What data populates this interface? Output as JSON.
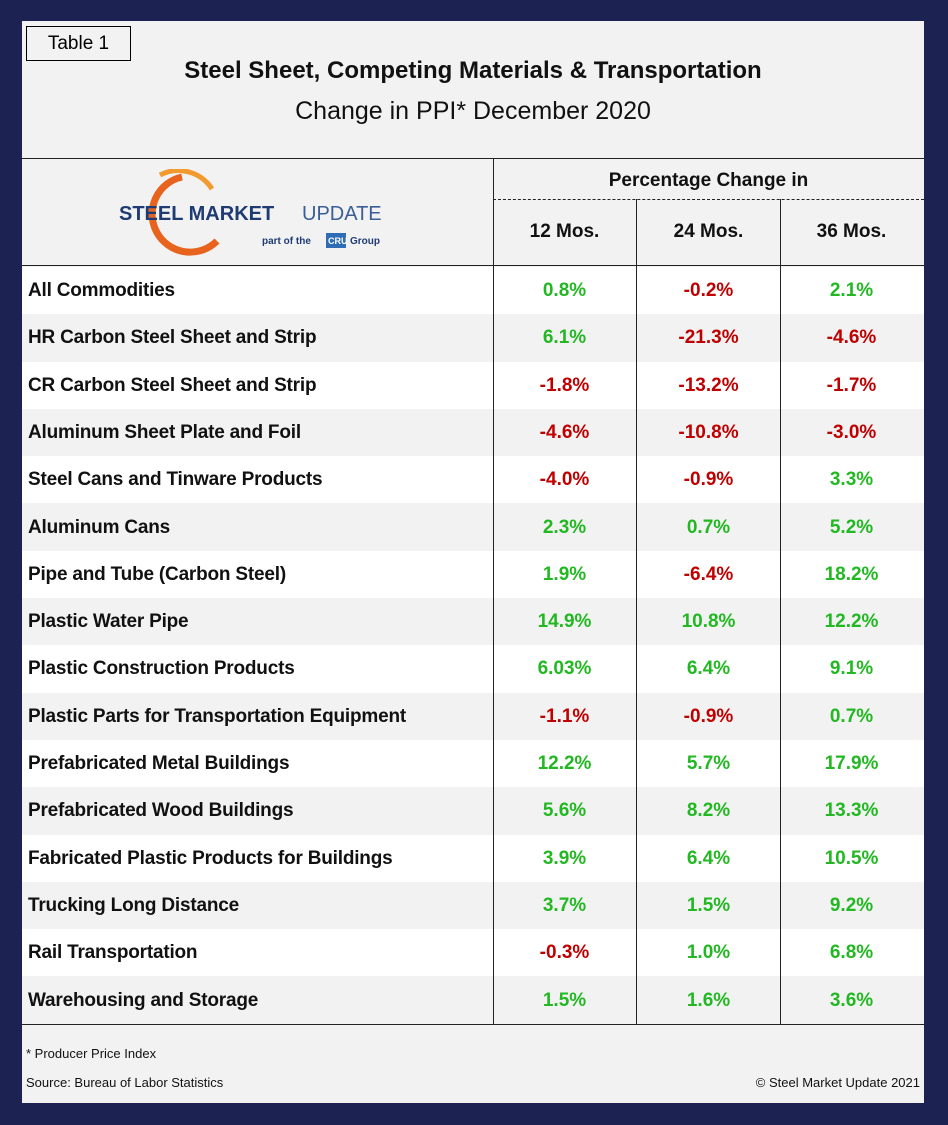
{
  "table_label": "Table 1",
  "title": "Steel Sheet, Competing Materials & Transportation",
  "subtitle": "Change in PPI* December 2020",
  "logo": {
    "brand_main": "STEEL MARKET",
    "brand_update": "UPDATE",
    "tagline_pre": "part of the",
    "tagline_cru": "CRU",
    "tagline_post": "Group"
  },
  "table": {
    "group_header": "Percentage Change in",
    "columns": [
      "12 Mos.",
      "24 Mos.",
      "36 Mos."
    ],
    "rows": [
      [
        "All Commodities",
        "0.8%",
        "-0.2%",
        "2.1%"
      ],
      [
        "HR Carbon Steel Sheet and Strip",
        "6.1%",
        "-21.3%",
        "-4.6%"
      ],
      [
        "CR Carbon Steel Sheet and Strip",
        "-1.8%",
        "-13.2%",
        "-1.7%"
      ],
      [
        "Aluminum Sheet Plate and Foil",
        "-4.6%",
        "-10.8%",
        "-3.0%"
      ],
      [
        "Steel Cans and Tinware Products",
        "-4.0%",
        "-0.9%",
        "3.3%"
      ],
      [
        "Aluminum Cans",
        "2.3%",
        "0.7%",
        "5.2%"
      ],
      [
        "Pipe and Tube (Carbon Steel)",
        "1.9%",
        "-6.4%",
        "18.2%"
      ],
      [
        "Plastic Water Pipe",
        "14.9%",
        "10.8%",
        "12.2%"
      ],
      [
        "Plastic Construction Products",
        "6.03%",
        "6.4%",
        "9.1%"
      ],
      [
        "Plastic Parts for Transportation Equipment",
        "-1.1%",
        "-0.9%",
        "0.7%"
      ],
      [
        "Prefabricated Metal Buildings",
        "12.2%",
        "5.7%",
        "17.9%"
      ],
      [
        "Prefabricated Wood Buildings",
        "5.6%",
        "8.2%",
        "13.3%"
      ],
      [
        "Fabricated Plastic Products for Buildings",
        "3.9%",
        "6.4%",
        "10.5%"
      ],
      [
        "Trucking Long Distance",
        "3.7%",
        "1.5%",
        "9.2%"
      ],
      [
        "Rail Transportation",
        "-0.3%",
        "1.0%",
        "6.8%"
      ],
      [
        "Warehousing and Storage",
        "1.5%",
        "1.6%",
        "3.6%"
      ]
    ]
  },
  "footnote": "* Producer Price Index",
  "source": "Source: Bureau of Labor Statistics",
  "copyright": "© Steel Market Update 2021"
}
